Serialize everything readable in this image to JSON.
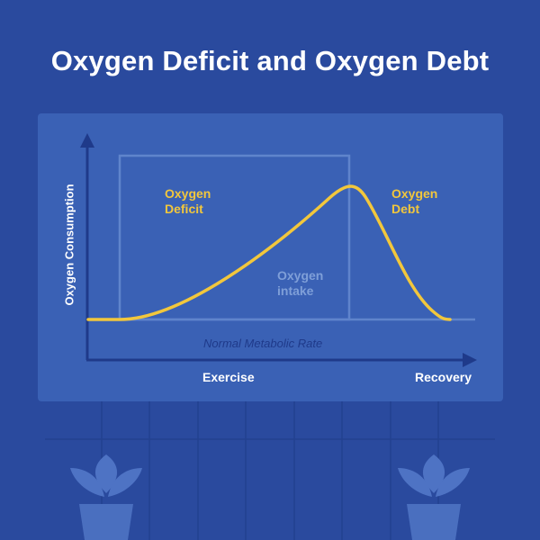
{
  "title": "Oxygen Deficit and Oxygen Debt",
  "diagram": {
    "y_axis_label": "Oxygen Consumption",
    "x_axis_left_label": "Exercise",
    "x_axis_right_label": "Recovery",
    "baseline_label": "Normal Metabolic Rate",
    "regions": {
      "deficit": [
        "Oxygen",
        "Deficit"
      ],
      "debt": [
        "Oxygen",
        "Debt"
      ],
      "intake": [
        "Oxygen",
        "intake"
      ]
    }
  },
  "colors": {
    "background": "#2a4a9e",
    "panel": "#3a61b5",
    "curve": "#f2c73c",
    "axis": "#1f3a8a",
    "box": "#5f84cc"
  }
}
